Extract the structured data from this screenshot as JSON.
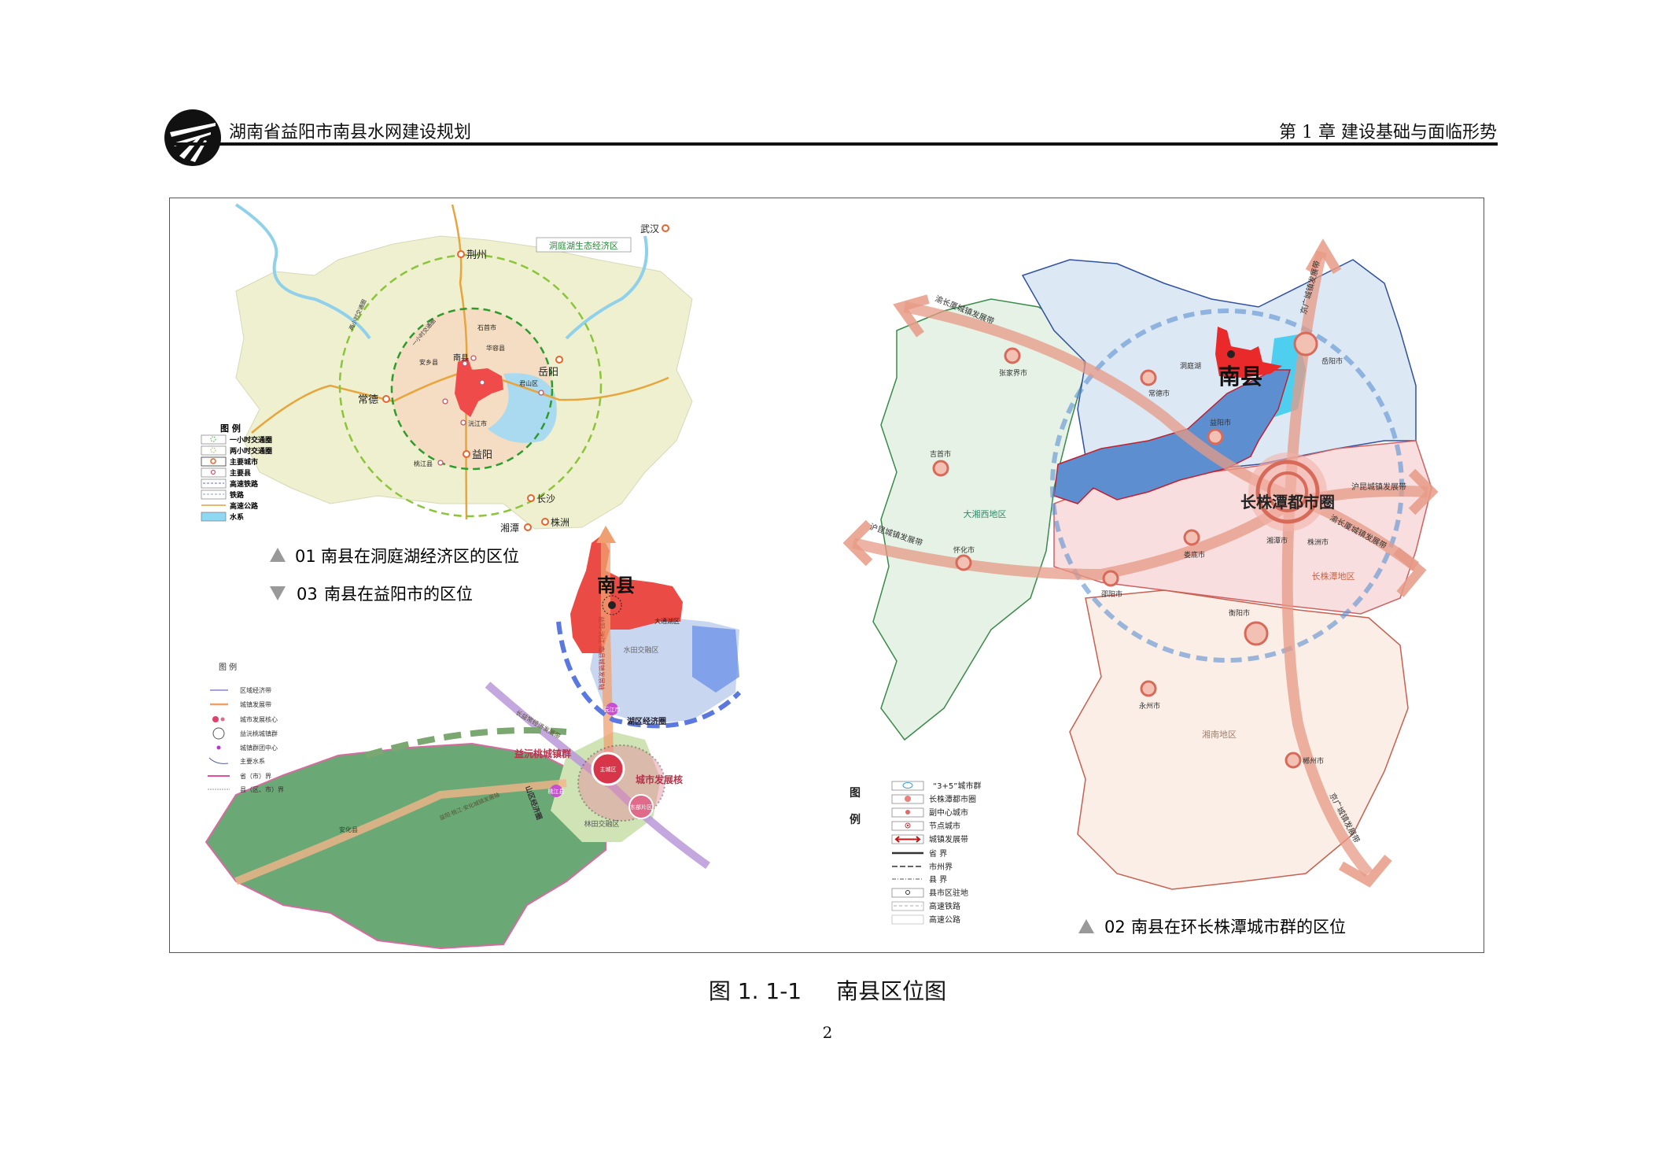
{
  "header": {
    "title": "湖南省益阳市南县水网建设规划",
    "chapter": "第 1 章    建设基础与面临形势"
  },
  "figure": {
    "caption_number": "图 1. 1-1",
    "caption_title": "南县区位图",
    "page_number": "2"
  },
  "map01": {
    "caption_no": "01",
    "caption": "南县在洞庭湖经济区的区位",
    "zone_label": "洞庭湖生态经济区",
    "inner_ring_label": "一小时交通圈",
    "outer_ring_label": "两小时交通圈",
    "cities": {
      "wuhan": "武汉",
      "jingzhou": "荆州",
      "shishou": "石首市",
      "huarong": "华容县",
      "nanxian": "南县",
      "anxiang": "安乡县",
      "junshan": "君山区",
      "yueyang": "岳阳",
      "changde": "常德",
      "yuanjiang": "沅江市",
      "yiyang": "益阳",
      "taojiang": "桃江县",
      "changsha": "长沙",
      "zhuzhou": "株洲",
      "xiangtan": "湘潭"
    },
    "legend_title": "图  例",
    "legend": [
      "一小时交通圈",
      "两小时交通圈",
      "主要城市",
      "主要县",
      "高速铁路",
      "铁路",
      "高速公路",
      "水系"
    ]
  },
  "map02": {
    "caption_no": "02",
    "caption": "南县在环长株潭城市群的区位",
    "nanxian": "南县",
    "metro": "长株潭都市圈",
    "cities": {
      "yueyang": "岳阳市",
      "zhangjiajie": "张家界市",
      "changde": "常德市",
      "yiyang": "益阳市",
      "jishou": "吉首市",
      "xiangtan": "湘潭市",
      "zhuzhou": "株洲市",
      "loudi": "娄底市",
      "huaihua": "怀化市",
      "shaoyang": "邵阳市",
      "hengyang": "衡阳市",
      "yongzhou": "永州市",
      "chenzhou": "郴州市",
      "dongting": "洞庭湖"
    },
    "regions": {
      "west": "大湘西地区",
      "cztr": "长株潭地区",
      "south": "湘南地区"
    },
    "belts": {
      "yuchangxia_w": "渝长厦城镇发展带",
      "jingguang_n": "京广城镇发展带",
      "hukun_w": "沪昆城镇发展带",
      "hukun_e": "沪昆城镇发展带",
      "yuchangxia_e": "渝长厦城镇发展带",
      "jingguang_s": "京广城镇发展带"
    },
    "legend_title": [
      "图",
      "例"
    ],
    "legend": [
      "“3+5”城市群",
      "长株潭都市圈",
      "副中心城市",
      "节点城市",
      "城镇发展带",
      "省  界",
      "市州界",
      "县  界",
      "县市区驻地",
      "高速铁路",
      "高速公路"
    ]
  },
  "map03": {
    "caption_no": "03",
    "caption": "南县在益阳市的区位",
    "nanxian": "南县",
    "labels": {
      "datonghu": "大通湖区",
      "shuitian": "水田交融区",
      "yuanjiang": "沅江市",
      "huqu": "湖区经济圈",
      "yiyuantao": "益沅桃城镇群",
      "zhucheng": "主城区",
      "core": "城市发展核",
      "taojiang": "桃江县",
      "dongbu": "东部片区",
      "lintian": "林田交融区",
      "shanqu": "山区经济圈",
      "axis_n": "益阳-沅江-南县城镇发展轴",
      "belt_cy": "长益常经济发展带",
      "axis_w": "益阳·桃江·安化城镇发展轴",
      "anhua": "安化县"
    },
    "legend_title": "图     例",
    "legend": [
      "区域经济带",
      "城镇发展带",
      "城市发展核心",
      "益沅桃城镇群",
      "城镇群团中心",
      "主要水系",
      "省（市）界",
      "县（区、市）界"
    ]
  },
  "colors": {
    "nanxian_red": "#e8403c",
    "belt_salmon": "#e79a86",
    "metro_ring": "#d86a5a",
    "ring_green": "#3aa63a",
    "lake_blue": "#7fd3ee",
    "region_blue": "#5d8fd0"
  }
}
